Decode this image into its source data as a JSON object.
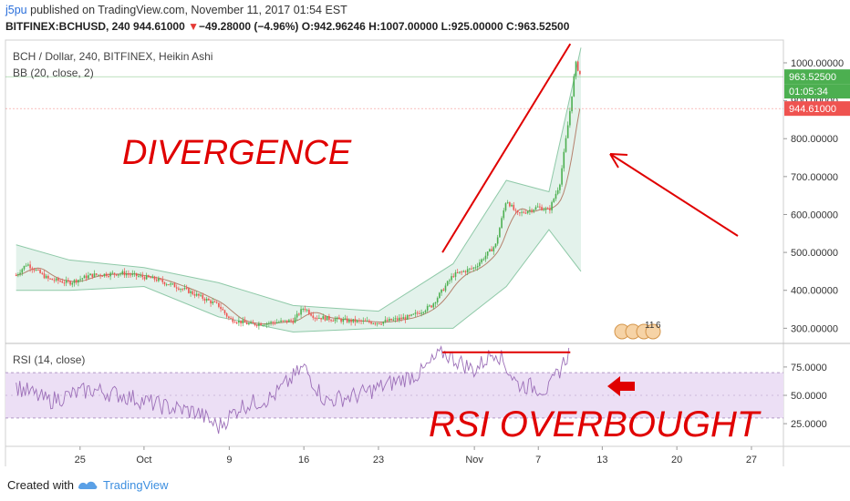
{
  "header": {
    "user": "j5pu",
    "published_text": "published on TradingView.com, November 11, 2017 01:54 EST",
    "symbol_line_prefix": "BITFINEX:BCHUSD, 240  944.61000",
    "change_triangle": "▼",
    "change_text": "−49.28000 (−4.96%)",
    "open_label": "O:",
    "open_value": "942.96246",
    "high_label": "H:",
    "high_value": "1007.00000",
    "low_label": "L:",
    "low_value": "925.00000",
    "close_label": "C:",
    "close_value": "963.52500"
  },
  "overlays": {
    "main_title": "BCH / Dollar, 240, BITFINEX, Heikin Ashi",
    "bb_label": "BB (20, close, 2)",
    "rsi_label": "RSI (14, close)"
  },
  "annotations": {
    "divergence": "DIVERGENCE",
    "rsi_overbought": "RSI OVERBOUGHT"
  },
  "footer": {
    "created_with": "Created with",
    "brand": "TradingView"
  },
  "colors": {
    "up": "#26a69a",
    "up_bright": "#4caf50",
    "down": "#ef5350",
    "bb_fill": "#dcefe6",
    "bb_line": "#8fc9a8",
    "rsi_line": "#9c6fb8",
    "rsi_band": "#ecdff5",
    "annotation": "#e00000",
    "last_price_green": "#4caf50",
    "last_price_red": "#ef5350"
  },
  "chart_data": [
    {
      "type": "candlestick",
      "title": "BCH / Dollar, 240, BITFINEX, Heikin Ashi",
      "indicator": "BB (20, close, 2)",
      "y_axis_ticks": [
        "300.00000",
        "400.00000",
        "500.00000",
        "600.00000",
        "700.00000",
        "800.00000",
        "900.00000",
        "1000.00000"
      ],
      "ylim": [
        260,
        1060
      ],
      "x_axis_ticks": [
        "25",
        "Oct",
        "9",
        "16",
        "23",
        "Nov",
        "7",
        "13",
        "20",
        "27"
      ],
      "price_labels": [
        {
          "text": "963.52500",
          "value": 963.525,
          "color": "green"
        },
        {
          "text": "01:05:34",
          "value": 930,
          "color": "green"
        },
        {
          "text": "944.61000",
          "value": 944.61,
          "color": "red"
        }
      ],
      "close_path": [
        {
          "date": "2017-09-19",
          "price": 440
        },
        {
          "date": "2017-09-20",
          "price": 470
        },
        {
          "date": "2017-09-21",
          "price": 450
        },
        {
          "date": "2017-09-22",
          "price": 430
        },
        {
          "date": "2017-09-24",
          "price": 420
        },
        {
          "date": "2017-09-26",
          "price": 440
        },
        {
          "date": "2017-09-29",
          "price": 445
        },
        {
          "date": "2017-10-02",
          "price": 430
        },
        {
          "date": "2017-10-05",
          "price": 400
        },
        {
          "date": "2017-10-08",
          "price": 360
        },
        {
          "date": "2017-10-09",
          "price": 325
        },
        {
          "date": "2017-10-11",
          "price": 310
        },
        {
          "date": "2017-10-13",
          "price": 315
        },
        {
          "date": "2017-10-15",
          "price": 320
        },
        {
          "date": "2017-10-16",
          "price": 355
        },
        {
          "date": "2017-10-17",
          "price": 330
        },
        {
          "date": "2017-10-20",
          "price": 320
        },
        {
          "date": "2017-10-23",
          "price": 315
        },
        {
          "date": "2017-10-26",
          "price": 330
        },
        {
          "date": "2017-10-28",
          "price": 360
        },
        {
          "date": "2017-10-30",
          "price": 440
        },
        {
          "date": "2017-11-01",
          "price": 460
        },
        {
          "date": "2017-11-03",
          "price": 520
        },
        {
          "date": "2017-11-04",
          "price": 640
        },
        {
          "date": "2017-11-05",
          "price": 600
        },
        {
          "date": "2017-11-07",
          "price": 620
        },
        {
          "date": "2017-11-08",
          "price": 610
        },
        {
          "date": "2017-11-09",
          "price": 680
        },
        {
          "date": "2017-11-10",
          "price": 880
        },
        {
          "date": "2017-11-10T12:00",
          "price": 1000
        },
        {
          "date": "2017-11-11",
          "price": 963.5
        }
      ],
      "bb_upper": [
        {
          "date": "2017-09-19",
          "price": 520
        },
        {
          "date": "2017-09-24",
          "price": 480
        },
        {
          "date": "2017-10-01",
          "price": 460
        },
        {
          "date": "2017-10-08",
          "price": 420
        },
        {
          "date": "2017-10-15",
          "price": 360
        },
        {
          "date": "2017-10-23",
          "price": 345
        },
        {
          "date": "2017-10-30",
          "price": 470
        },
        {
          "date": "2017-11-04",
          "price": 690
        },
        {
          "date": "2017-11-08",
          "price": 660
        },
        {
          "date": "2017-11-11",
          "price": 1040
        }
      ],
      "bb_lower": [
        {
          "date": "2017-09-19",
          "price": 400
        },
        {
          "date": "2017-09-24",
          "price": 400
        },
        {
          "date": "2017-10-01",
          "price": 410
        },
        {
          "date": "2017-10-08",
          "price": 330
        },
        {
          "date": "2017-10-15",
          "price": 290
        },
        {
          "date": "2017-10-23",
          "price": 300
        },
        {
          "date": "2017-10-30",
          "price": 300
        },
        {
          "date": "2017-11-04",
          "price": 410
        },
        {
          "date": "2017-11-08",
          "price": 560
        },
        {
          "date": "2017-11-11",
          "price": 450
        }
      ]
    },
    {
      "type": "line",
      "title": "RSI (14, close)",
      "y_axis_ticks": [
        "25.0000",
        "50.0000",
        "75.0000"
      ],
      "ylim": [
        5,
        95
      ],
      "band": [
        30,
        70
      ],
      "series": [
        {
          "date": "2017-09-19",
          "rsi": 58
        },
        {
          "date": "2017-09-22",
          "rsi": 45
        },
        {
          "date": "2017-09-26",
          "rsi": 55
        },
        {
          "date": "2017-09-29",
          "rsi": 50
        },
        {
          "date": "2017-10-03",
          "rsi": 40
        },
        {
          "date": "2017-10-06",
          "rsi": 35
        },
        {
          "date": "2017-10-08",
          "rsi": 22
        },
        {
          "date": "2017-10-10",
          "rsi": 40
        },
        {
          "date": "2017-10-13",
          "rsi": 48
        },
        {
          "date": "2017-10-16",
          "rsi": 75
        },
        {
          "date": "2017-10-18",
          "rsi": 45
        },
        {
          "date": "2017-10-21",
          "rsi": 50
        },
        {
          "date": "2017-10-24",
          "rsi": 60
        },
        {
          "date": "2017-10-27",
          "rsi": 70
        },
        {
          "date": "2017-10-29",
          "rsi": 88
        },
        {
          "date": "2017-11-01",
          "rsi": 72
        },
        {
          "date": "2017-11-03",
          "rsi": 90
        },
        {
          "date": "2017-11-05",
          "rsi": 60
        },
        {
          "date": "2017-11-08",
          "rsi": 55
        },
        {
          "date": "2017-11-10",
          "rsi": 90
        }
      ]
    }
  ]
}
